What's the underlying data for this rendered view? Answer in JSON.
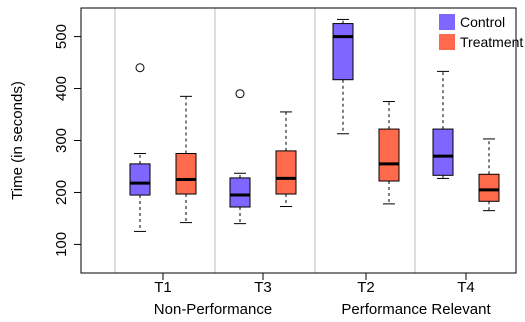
{
  "chart_data": {
    "type": "box",
    "title": "",
    "xlabel": "",
    "ylabel": "Time (in seconds)",
    "ylim": [
      45,
      555
    ],
    "yticks": [
      100,
      200,
      300,
      400,
      500
    ],
    "grid": false,
    "legend_position": "top-right",
    "series": [
      {
        "name": "Control",
        "color": "#7f66ff"
      },
      {
        "name": "Treatment",
        "color": "#ff6a4d"
      }
    ],
    "categories": [
      "T1",
      "T3",
      "T2",
      "T4"
    ],
    "groups": [
      {
        "label": "Non-Performance",
        "categories": [
          "T1",
          "T3"
        ]
      },
      {
        "label": "Performance Relevant",
        "categories": [
          "T2",
          "T4"
        ]
      }
    ],
    "boxes": [
      {
        "category": "T1",
        "series": "Control",
        "min": 125,
        "q1": 195,
        "median": 218,
        "q3": 255,
        "max": 275,
        "outliers": [
          440
        ]
      },
      {
        "category": "T1",
        "series": "Treatment",
        "min": 142,
        "q1": 197,
        "median": 225,
        "q3": 275,
        "max": 385,
        "outliers": []
      },
      {
        "category": "T3",
        "series": "Control",
        "min": 140,
        "q1": 172,
        "median": 195,
        "q3": 228,
        "max": 237,
        "outliers": [
          390
        ]
      },
      {
        "category": "T3",
        "series": "Treatment",
        "min": 173,
        "q1": 197,
        "median": 227,
        "q3": 280,
        "max": 355,
        "outliers": []
      },
      {
        "category": "T2",
        "series": "Control",
        "min": 313,
        "q1": 417,
        "median": 500,
        "q3": 525,
        "max": 533,
        "outliers": []
      },
      {
        "category": "T2",
        "series": "Treatment",
        "min": 178,
        "q1": 222,
        "median": 255,
        "q3": 322,
        "max": 375,
        "outliers": []
      },
      {
        "category": "T4",
        "series": "Control",
        "min": 227,
        "q1": 233,
        "median": 270,
        "q3": 322,
        "max": 433,
        "outliers": []
      },
      {
        "category": "T4",
        "series": "Treatment",
        "min": 165,
        "q1": 183,
        "median": 205,
        "q3": 235,
        "max": 303,
        "outliers": []
      }
    ]
  }
}
